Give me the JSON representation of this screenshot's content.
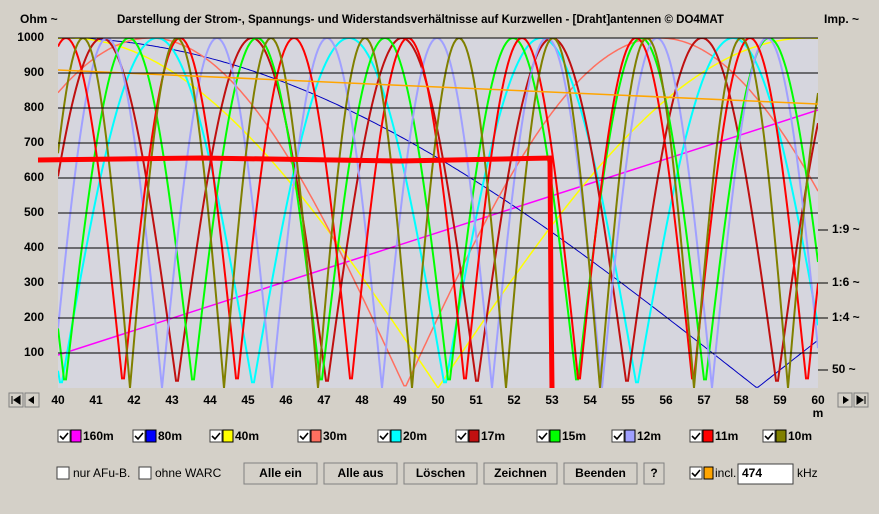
{
  "header": {
    "left_label": "Ohm ~",
    "title": "Darstellung der Strom-, Spannungs- und Widerstandsverhältnisse auf Kurzwellen - [Draht]antennen      © DO4MAT",
    "right_label": "Imp. ~"
  },
  "y_axis": {
    "ticks": [
      1000,
      900,
      800,
      700,
      600,
      500,
      400,
      300,
      200,
      100
    ]
  },
  "right_axis": {
    "labels": [
      "1:9 ~",
      "1:6 ~",
      "1:4 ~",
      "50 ~"
    ]
  },
  "x_axis": {
    "ticks": [
      40,
      41,
      42,
      43,
      44,
      45,
      46,
      47,
      48,
      49,
      50,
      51,
      52,
      53,
      54,
      55,
      56,
      57,
      58,
      59,
      60
    ],
    "unit": "m"
  },
  "legend": [
    {
      "label": "160m",
      "color": "#ff00ff"
    },
    {
      "label": "80m",
      "color": "#0000ff"
    },
    {
      "label": "40m",
      "color": "#ffff00"
    },
    {
      "label": "30m",
      "color": "#ff7060"
    },
    {
      "label": "20m",
      "color": "#00ffff"
    },
    {
      "label": "17m",
      "color": "#c01010"
    },
    {
      "label": "15m",
      "color": "#00ff00"
    },
    {
      "label": "12m",
      "color": "#a0a0ff"
    },
    {
      "label": "11m",
      "color": "#ff0000"
    },
    {
      "label": "10m",
      "color": "#808000"
    }
  ],
  "controls": {
    "only_afu": "nur AFu-B.",
    "no_warc": "ohne WARC",
    "buttons": [
      "Alle ein",
      "Alle aus",
      "Löschen",
      "Zeichnen",
      "Beenden",
      "?"
    ],
    "incl": "incl.",
    "khz_value": "474",
    "khz_unit": "kHz"
  }
}
